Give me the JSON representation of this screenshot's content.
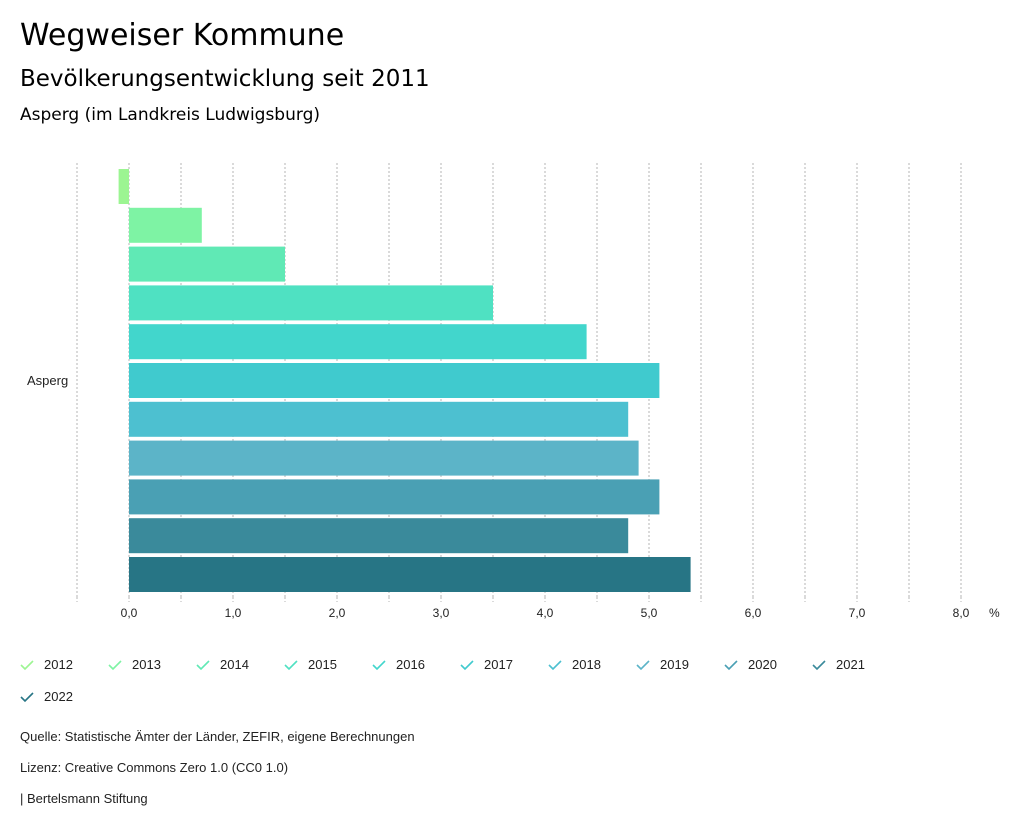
{
  "header": {
    "title": "Wegweiser Kommune",
    "subtitle": "Bevölkerungsentwicklung seit 2011",
    "location": "Asperg (im Landkreis Ludwigsburg)"
  },
  "chart_data": {
    "type": "bar",
    "orientation": "horizontal",
    "categories": [
      "Asperg"
    ],
    "xlim": [
      -0.5,
      8.0
    ],
    "unit": "%",
    "ticks": [
      "0,0",
      "1,0",
      "2,0",
      "3,0",
      "4,0",
      "5,0",
      "6,0",
      "7,0",
      "8,0"
    ],
    "series": [
      {
        "name": "2012",
        "values": [
          -0.1
        ],
        "color": "#9cf592"
      },
      {
        "name": "2013",
        "values": [
          0.7
        ],
        "color": "#7ef3a4"
      },
      {
        "name": "2014",
        "values": [
          1.5
        ],
        "color": "#60e9b5"
      },
      {
        "name": "2015",
        "values": [
          3.5
        ],
        "color": "#4fe1c2"
      },
      {
        "name": "2016",
        "values": [
          4.4
        ],
        "color": "#42d6cc"
      },
      {
        "name": "2017",
        "values": [
          5.1
        ],
        "color": "#40cace"
      },
      {
        "name": "2018",
        "values": [
          4.8
        ],
        "color": "#4dc0d0"
      },
      {
        "name": "2019",
        "values": [
          4.9
        ],
        "color": "#5cb4c8"
      },
      {
        "name": "2020",
        "values": [
          5.1
        ],
        "color": "#4aa0b4"
      },
      {
        "name": "2021",
        "values": [
          4.8
        ],
        "color": "#3a8a9b"
      },
      {
        "name": "2022",
        "values": [
          5.4
        ],
        "color": "#277585"
      }
    ],
    "legend": "bottom"
  },
  "footer": {
    "source": "Quelle: Statistische Ämter der Länder, ZEFIR, eigene Berechnungen",
    "license": "Lizenz: Creative Commons Zero 1.0 (CC0 1.0)",
    "brand": "| Bertelsmann Stiftung"
  }
}
